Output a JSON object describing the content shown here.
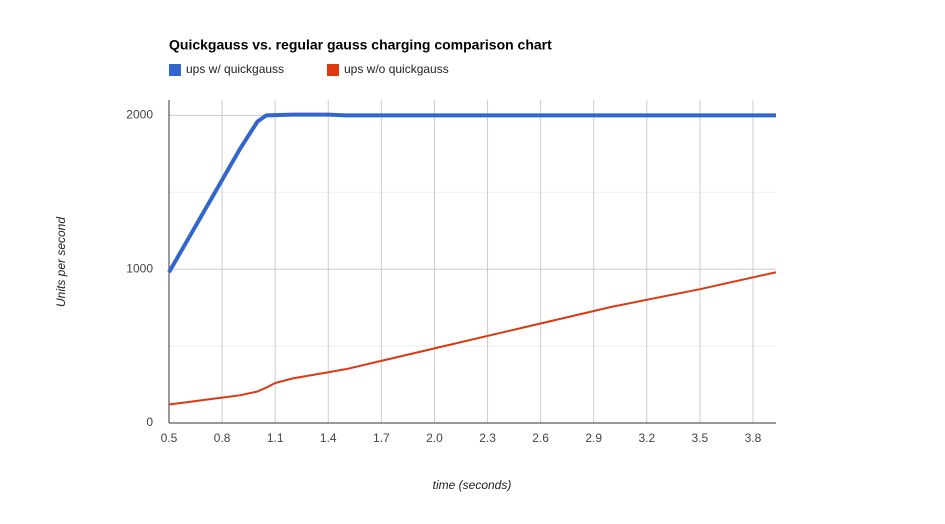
{
  "chart_data": {
    "type": "line",
    "title": "Quickgauss vs. regular gauss charging comparison chart",
    "x_label": "time (seconds)",
    "y_label": "Units per second",
    "x": [
      0.5,
      0.6,
      0.7,
      0.8,
      0.9,
      1.0,
      1.05,
      1.1,
      1.2,
      1.4,
      1.5,
      2.0,
      2.5,
      3.0,
      3.5,
      3.93
    ],
    "series": [
      {
        "name": "ups w/ quickgauss",
        "color": "#3366cc",
        "values": [
          980,
          1180,
          1380,
          1580,
          1780,
          1960,
          2000,
          2002,
          2005,
          2005,
          2000,
          2000,
          2000,
          2000,
          2000,
          2000
        ]
      },
      {
        "name": "ups w/o quickgauss",
        "color": "#dc3912",
        "values": [
          120,
          135,
          150,
          165,
          180,
          205,
          230,
          260,
          290,
          330,
          350,
          485,
          620,
          755,
          870,
          980
        ]
      }
    ],
    "xlim": [
      0.5,
      3.93
    ],
    "xticks": [
      0.5,
      0.8,
      1.1,
      1.4,
      1.7,
      {
        "value": 2,
        "label": "2.0"
      },
      2.3,
      2.6,
      2.9,
      3.2,
      3.5,
      3.8
    ],
    "ylim": [
      0,
      2100
    ],
    "yticks": [
      0,
      1000,
      2000
    ],
    "minor_yticks": [
      500,
      1500
    ],
    "grid": true,
    "legend": "top"
  }
}
